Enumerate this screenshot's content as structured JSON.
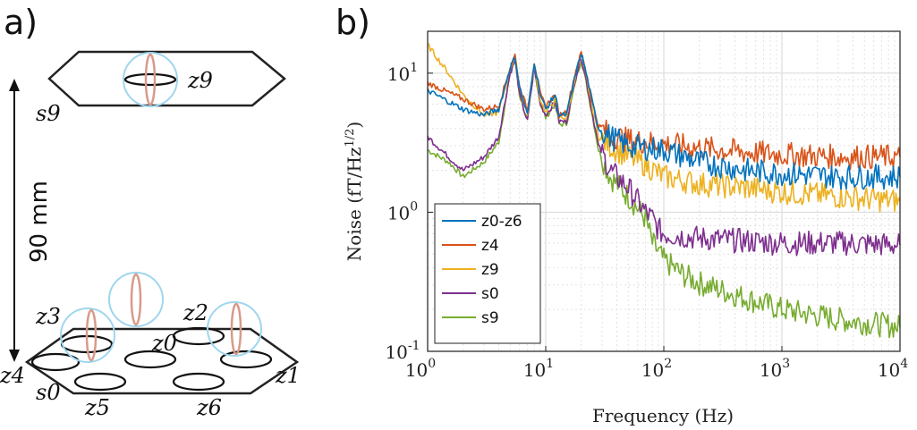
{
  "panel_a": {
    "label": "a)",
    "distance_label": "90 mm",
    "top_sensor": "z9",
    "top_coil": "s9",
    "bottom_coil": "s0",
    "bottom_sensors": [
      "z0",
      "z1",
      "z2",
      "z3",
      "z4",
      "z5",
      "z6"
    ]
  },
  "chart_data": {
    "type": "line",
    "panel_label": "b)",
    "xscale": "log",
    "yscale": "log",
    "xlim": [
      1,
      10000
    ],
    "ylim": [
      0.1,
      20
    ],
    "xlabel": "Frequency (Hz)",
    "ylabel": "Noise (fT/Hz^1/2)",
    "ylabel_main": "Noise (fT/Hz",
    "ylabel_sup": "1/2",
    "ylabel_end": ")",
    "x_ticks": [
      {
        "value": 1,
        "base": "10",
        "exp": "0"
      },
      {
        "value": 10,
        "base": "10",
        "exp": "1"
      },
      {
        "value": 100,
        "base": "10",
        "exp": "2"
      },
      {
        "value": 1000,
        "base": "10",
        "exp": "3"
      },
      {
        "value": 10000,
        "base": "10",
        "exp": "4"
      }
    ],
    "y_ticks": [
      {
        "value": 0.1,
        "base": "10",
        "exp": "-1"
      },
      {
        "value": 1,
        "base": "10",
        "exp": "0"
      },
      {
        "value": 10,
        "base": "10",
        "exp": "1"
      }
    ],
    "grid": true,
    "legend_position": "bottom-left",
    "series": [
      {
        "name": "z0-z6",
        "color": "#0072BD",
        "points": [
          [
            1,
            7.5
          ],
          [
            2,
            5.5
          ],
          [
            3,
            5
          ],
          [
            4,
            5.5
          ],
          [
            5,
            11
          ],
          [
            5.5,
            13
          ],
          [
            6,
            8
          ],
          [
            7,
            5
          ],
          [
            8,
            12
          ],
          [
            9,
            7
          ],
          [
            10,
            5.5
          ],
          [
            12,
            7
          ],
          [
            13,
            5
          ],
          [
            15,
            5
          ],
          [
            18,
            10
          ],
          [
            20,
            14
          ],
          [
            22,
            10
          ],
          [
            25,
            6
          ],
          [
            28,
            4
          ],
          [
            35,
            3.5
          ],
          [
            50,
            3
          ],
          [
            70,
            2.9
          ],
          [
            100,
            2.8
          ],
          [
            200,
            2.3
          ],
          [
            500,
            2.0
          ],
          [
            1000,
            1.9
          ],
          [
            3000,
            1.8
          ],
          [
            10000,
            1.8
          ]
        ]
      },
      {
        "name": "z4",
        "color": "#D95319",
        "points": [
          [
            1,
            8.5
          ],
          [
            2,
            6.5
          ],
          [
            3,
            5.5
          ],
          [
            4,
            5.8
          ],
          [
            5,
            11
          ],
          [
            5.5,
            13.5
          ],
          [
            6,
            8
          ],
          [
            7,
            5.5
          ],
          [
            8,
            12
          ],
          [
            9,
            7
          ],
          [
            10,
            5.8
          ],
          [
            12,
            7
          ],
          [
            13,
            5
          ],
          [
            15,
            5.3
          ],
          [
            18,
            10.5
          ],
          [
            20,
            14
          ],
          [
            22,
            10
          ],
          [
            25,
            6
          ],
          [
            28,
            4.2
          ],
          [
            35,
            3.6
          ],
          [
            50,
            3.3
          ],
          [
            70,
            3.2
          ],
          [
            100,
            3.1
          ],
          [
            200,
            2.9
          ],
          [
            500,
            2.7
          ],
          [
            1000,
            2.6
          ],
          [
            3000,
            2.5
          ],
          [
            10000,
            2.5
          ]
        ]
      },
      {
        "name": "z9",
        "color": "#EDB120",
        "points": [
          [
            1,
            16
          ],
          [
            1.5,
            10
          ],
          [
            2,
            7
          ],
          [
            3,
            5
          ],
          [
            4,
            5.2
          ],
          [
            5,
            11
          ],
          [
            5.5,
            13
          ],
          [
            6,
            8
          ],
          [
            7,
            5
          ],
          [
            8,
            11.5
          ],
          [
            9,
            6.5
          ],
          [
            10,
            5.2
          ],
          [
            12,
            6.5
          ],
          [
            13,
            4.8
          ],
          [
            15,
            4.8
          ],
          [
            18,
            10
          ],
          [
            20,
            13.5
          ],
          [
            22,
            9.5
          ],
          [
            25,
            5.5
          ],
          [
            28,
            3.5
          ],
          [
            35,
            3
          ],
          [
            50,
            2.5
          ],
          [
            70,
            2.2
          ],
          [
            100,
            1.8
          ],
          [
            200,
            1.6
          ],
          [
            500,
            1.5
          ],
          [
            1000,
            1.4
          ],
          [
            3000,
            1.3
          ],
          [
            10000,
            1.2
          ]
        ]
      },
      {
        "name": "s0",
        "color": "#7E2F8E",
        "points": [
          [
            1,
            3.5
          ],
          [
            1.5,
            2.5
          ],
          [
            2,
            2
          ],
          [
            3,
            2.5
          ],
          [
            4,
            3.5
          ],
          [
            5,
            10
          ],
          [
            5.5,
            12.5
          ],
          [
            6,
            7
          ],
          [
            7,
            4.5
          ],
          [
            8,
            11
          ],
          [
            9,
            6
          ],
          [
            10,
            5
          ],
          [
            12,
            6.2
          ],
          [
            13,
            4.5
          ],
          [
            15,
            4.5
          ],
          [
            18,
            9.5
          ],
          [
            20,
            13
          ],
          [
            22,
            9
          ],
          [
            25,
            5
          ],
          [
            28,
            3
          ],
          [
            35,
            2
          ],
          [
            50,
            1.5
          ],
          [
            70,
            1.0
          ],
          [
            80,
            0.9
          ],
          [
            90,
            0.75
          ],
          [
            100,
            0.7
          ],
          [
            200,
            0.65
          ],
          [
            500,
            0.62
          ],
          [
            1000,
            0.6
          ],
          [
            3000,
            0.6
          ],
          [
            10000,
            0.58
          ]
        ]
      },
      {
        "name": "s9",
        "color": "#77AC30",
        "points": [
          [
            1,
            2.8
          ],
          [
            1.5,
            2.3
          ],
          [
            2,
            1.8
          ],
          [
            3,
            2.3
          ],
          [
            4,
            3.2
          ],
          [
            5,
            10
          ],
          [
            5.5,
            12.5
          ],
          [
            6,
            7
          ],
          [
            7,
            4.5
          ],
          [
            8,
            11
          ],
          [
            9,
            6
          ],
          [
            10,
            4.8
          ],
          [
            12,
            6
          ],
          [
            13,
            4.3
          ],
          [
            15,
            4.3
          ],
          [
            18,
            9
          ],
          [
            20,
            12.5
          ],
          [
            22,
            8.5
          ],
          [
            25,
            4.8
          ],
          [
            28,
            2.8
          ],
          [
            35,
            1.8
          ],
          [
            50,
            1.3
          ],
          [
            70,
            0.9
          ],
          [
            80,
            0.6
          ],
          [
            100,
            0.45
          ],
          [
            150,
            0.35
          ],
          [
            200,
            0.31
          ],
          [
            500,
            0.24
          ],
          [
            1000,
            0.2
          ],
          [
            3000,
            0.17
          ],
          [
            10000,
            0.15
          ]
        ]
      }
    ]
  }
}
